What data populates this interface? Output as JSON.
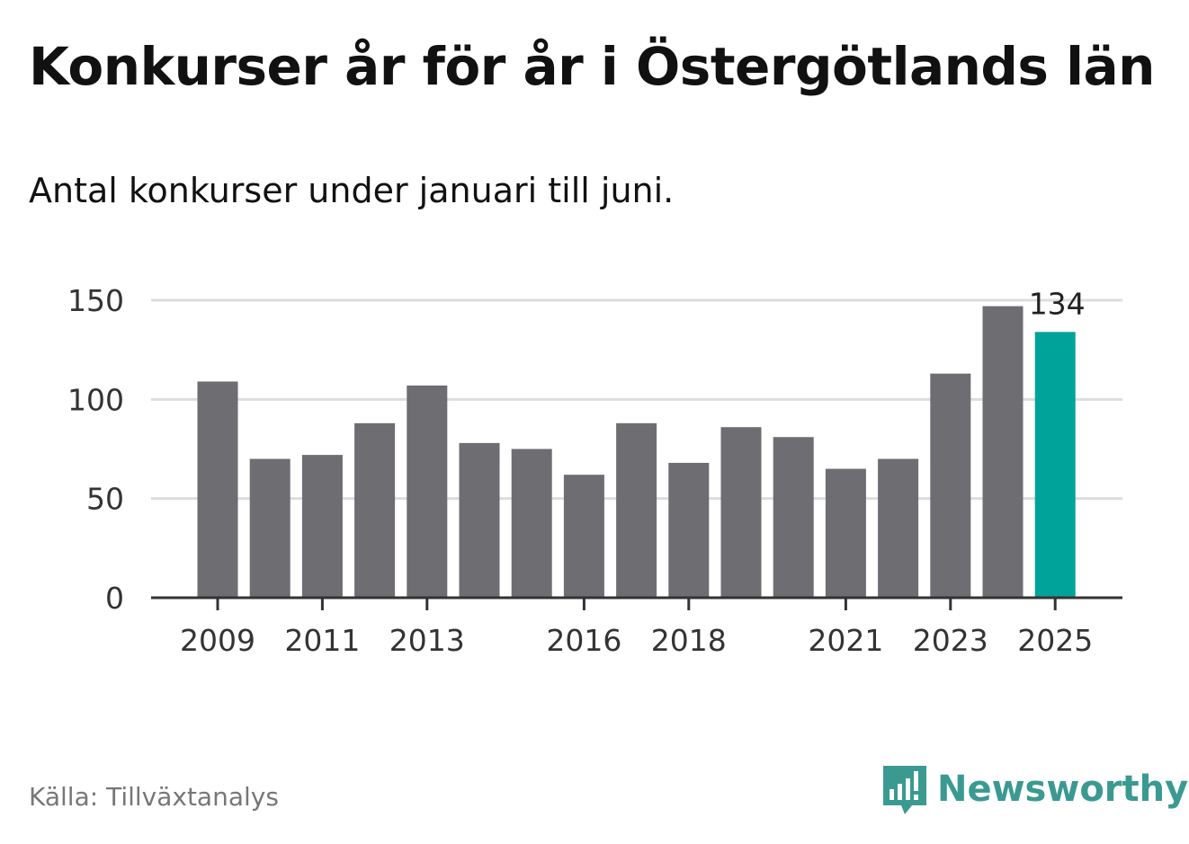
{
  "header": {
    "title": "Konkurser år för år i Östergötlands län",
    "subtitle": "Antal konkurser under januari till juni."
  },
  "footer": {
    "source": "Källa: Tillväxtanalys",
    "brand": "Newsworthy"
  },
  "colors": {
    "bar": "#6e6d72",
    "highlight": "#00a39a",
    "grid": "#dddddd",
    "axis": "#333333",
    "brand": "#3a9a92"
  },
  "icons": {
    "logo": "bar-chart-speech-bubble-icon"
  },
  "chart_data": {
    "type": "bar",
    "categories": [
      "2009",
      "2010",
      "2011",
      "2012",
      "2013",
      "2014",
      "2015",
      "2016",
      "2017",
      "2018",
      "2019",
      "2020",
      "2021",
      "2022",
      "2023",
      "2024",
      "2025"
    ],
    "values": [
      109,
      70,
      72,
      88,
      107,
      78,
      75,
      62,
      88,
      68,
      86,
      81,
      65,
      70,
      113,
      147,
      134
    ],
    "highlight_index": 16,
    "data_labels": [
      {
        "index": 16,
        "text": "134"
      }
    ],
    "x_tick_labels": [
      "2009",
      "2011",
      "2013",
      "2016",
      "2018",
      "2021",
      "2023",
      "2025"
    ],
    "y_ticks": [
      0,
      50,
      100,
      150
    ],
    "ylim": [
      0,
      150
    ],
    "grid": true,
    "legend": "none",
    "title": "Konkurser år för år i Östergötlands län",
    "subtitle": "Antal konkurser under januari till juni.",
    "xlabel": "",
    "ylabel": ""
  }
}
